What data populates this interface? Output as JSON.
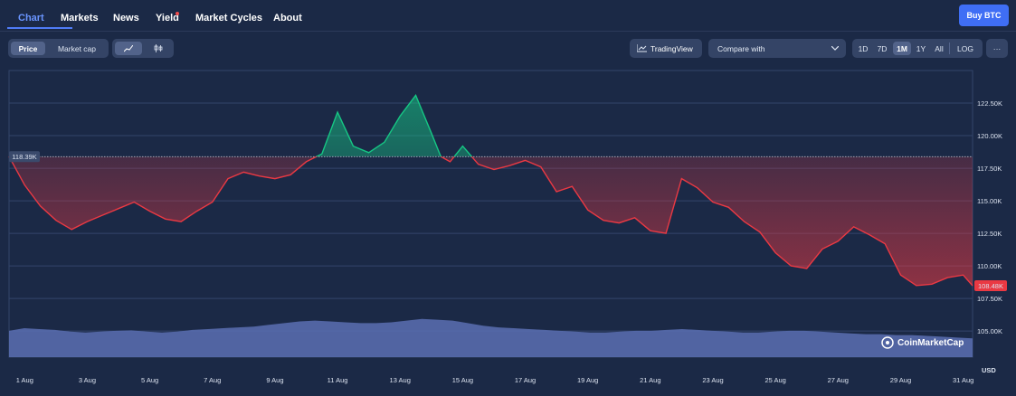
{
  "nav": {
    "tabs": [
      {
        "label": "Chart",
        "active": true
      },
      {
        "label": "Markets"
      },
      {
        "label": "News"
      },
      {
        "label": "Yield"
      },
      {
        "label": "Market Cycles"
      },
      {
        "label": "About"
      }
    ],
    "buy_label": "Buy BTC"
  },
  "toolbar": {
    "price_label": "Price",
    "marketcap_label": "Market cap",
    "line_icon": "line-chart-icon",
    "candle_label": "🕯",
    "tradingview_label": "TradingView",
    "compare_label": "Compare with",
    "ranges": [
      "1D",
      "7D",
      "1M",
      "1Y",
      "All"
    ],
    "active_range": "1M",
    "log_label": "LOG",
    "more_label": "···"
  },
  "colors": {
    "up": "#16c784",
    "down": "#ea3943",
    "volume": "#5a6fb3",
    "accent": "#3f6ef5"
  },
  "chart_data": {
    "type": "line",
    "title": "",
    "xlabel": "",
    "ylabel": "",
    "unit_label": "USD",
    "baseline": 118390,
    "baseline_label": "118.39K",
    "last_label": "108.48K",
    "ylim": [
      103000,
      125000
    ],
    "y_ticks": [
      105000,
      107500,
      110000,
      112500,
      115000,
      117500,
      120000,
      122500
    ],
    "y_tick_labels": [
      "105.00K",
      "107.50K",
      "110.00K",
      "112.50K",
      "115.00K",
      "117.50K",
      "120.00K",
      "122.50K"
    ],
    "xlim": [
      0.5,
      31.3
    ],
    "x_ticks": [
      1,
      3,
      5,
      7,
      9,
      11,
      13,
      15,
      17,
      19,
      21,
      23,
      25,
      27,
      29,
      31
    ],
    "x_tick_labels": [
      "1 Aug",
      "3 Aug",
      "5 Aug",
      "7 Aug",
      "9 Aug",
      "11 Aug",
      "13 Aug",
      "15 Aug",
      "17 Aug",
      "19 Aug",
      "21 Aug",
      "23 Aug",
      "25 Aug",
      "27 Aug",
      "29 Aug",
      "31 Aug"
    ],
    "x": [
      0.5,
      1.0,
      1.5,
      2.0,
      2.5,
      3.0,
      3.5,
      4.0,
      4.5,
      5.0,
      5.5,
      6.0,
      6.5,
      7.0,
      7.5,
      8.0,
      8.5,
      9.0,
      9.5,
      10.0,
      10.5,
      11.0,
      11.5,
      12.0,
      12.5,
      13.0,
      13.5,
      14.0,
      14.3,
      14.6,
      15.0,
      15.5,
      16.0,
      16.5,
      17.0,
      17.5,
      18.0,
      18.5,
      19.0,
      19.5,
      20.0,
      20.5,
      21.0,
      21.5,
      22.0,
      22.5,
      23.0,
      23.5,
      24.0,
      24.5,
      25.0,
      25.5,
      26.0,
      26.5,
      27.0,
      27.5,
      28.0,
      28.5,
      29.0,
      29.5,
      30.0,
      30.5,
      31.0,
      31.3
    ],
    "series": [
      {
        "values": [
          118400,
          116200,
          114600,
          113500,
          112800,
          113400,
          113900,
          114400,
          114900,
          114200,
          113600,
          113400,
          114200,
          114900,
          116700,
          117200,
          116900,
          116700,
          117000,
          118000,
          118600,
          121800,
          119200,
          118700,
          119500,
          121500,
          123100,
          120200,
          118400,
          118000,
          119200,
          117800,
          117400,
          117700,
          118100,
          117600,
          115700,
          116100,
          114300,
          113500,
          113300,
          113700,
          112700,
          112500,
          116700,
          116000,
          114900,
          114500,
          113400,
          112600,
          111000,
          110000,
          109800,
          111300,
          111900,
          113000,
          112400,
          111700,
          109300,
          108500,
          108600,
          109100,
          109300,
          108480
        ]
      }
    ],
    "volume": [
      62,
      68,
      66,
      64,
      60,
      58,
      60,
      62,
      63,
      60,
      58,
      60,
      64,
      66,
      68,
      70,
      72,
      76,
      80,
      84,
      86,
      84,
      82,
      80,
      80,
      82,
      86,
      90,
      88,
      86,
      80,
      74,
      70,
      68,
      66,
      64,
      62,
      60,
      58,
      58,
      60,
      62,
      62,
      64,
      66,
      64,
      62,
      60,
      58,
      58,
      60,
      62,
      62,
      60,
      58,
      56,
      54,
      54,
      52,
      52,
      50,
      48,
      46,
      44
    ]
  },
  "watermark": "CoinMarketCap"
}
